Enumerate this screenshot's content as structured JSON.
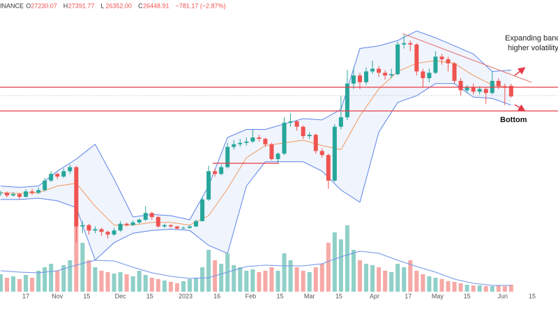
{
  "chart_data": {
    "type": "candlestick",
    "header": {
      "exchange": "INANCE",
      "fields": [
        {
          "label": "O",
          "value": "27230.07"
        },
        {
          "label": "H",
          "value": "27391.77"
        },
        {
          "label": "L",
          "value": "26352.00"
        },
        {
          "label": "C",
          "value": "26448.91"
        }
      ],
      "change": "−781.17 (−2.87%)"
    },
    "annotations": {
      "note_line1": "Expanding bands",
      "note_line2": "higher volatility",
      "bottom": "Bottom"
    },
    "xlim": [
      3.7,
      269.3
    ],
    "ylim": [
      11600,
      33600
    ],
    "volume_lim": [
      0,
      100
    ],
    "up_color": "#26a69a",
    "down_color": "#ef5350",
    "up_volume_color": "#8fd0c8",
    "down_volume_color": "#f6a9a6",
    "band_color": "#5b84e8",
    "band_mid_color": "#f09a5c",
    "volume_ma_color": "#6f93ea",
    "level_color": "#e53945",
    "levels": [
      27130,
      25370
    ],
    "xticks": [
      {
        "value": 16,
        "label": "17"
      },
      {
        "value": 31,
        "label": "Nov"
      },
      {
        "value": 45,
        "label": "15"
      },
      {
        "value": 61,
        "label": "Dec"
      },
      {
        "value": 75,
        "label": "15"
      },
      {
        "value": 92,
        "label": "2023"
      },
      {
        "value": 107,
        "label": "16"
      },
      {
        "value": 123,
        "label": "Feb"
      },
      {
        "value": 137,
        "label": "15"
      },
      {
        "value": 151,
        "label": "Mar"
      },
      {
        "value": 165,
        "label": "15"
      },
      {
        "value": 182,
        "label": "Apr"
      },
      {
        "value": 198,
        "label": "17"
      },
      {
        "value": 212,
        "label": "May"
      },
      {
        "value": 226,
        "label": "15"
      },
      {
        "value": 243,
        "label": "Jun"
      },
      {
        "value": 257,
        "label": "15"
      }
    ],
    "x": [
      4,
      7,
      10,
      13,
      16,
      19,
      22,
      25,
      28,
      31,
      34,
      37,
      40,
      43,
      46,
      49,
      52,
      55,
      58,
      61,
      64,
      67,
      70,
      73,
      76,
      79,
      82,
      85,
      88,
      91,
      94,
      97,
      100,
      103,
      106,
      109,
      112,
      115,
      118,
      121,
      124,
      127,
      130,
      133,
      136,
      139,
      142,
      145,
      148,
      151,
      154,
      157,
      160,
      163,
      166,
      169,
      172,
      175,
      178,
      181,
      184,
      187,
      190,
      193,
      196,
      199,
      202,
      205,
      208,
      211,
      214,
      217,
      220,
      223,
      226,
      229,
      232,
      235,
      238,
      241,
      244,
      247
    ],
    "candles": [
      [
        19250,
        19450,
        19050,
        19300
      ],
      [
        19300,
        19400,
        18950,
        19100
      ],
      [
        19100,
        19350,
        19000,
        19200
      ],
      [
        19200,
        19300,
        18800,
        19000
      ],
      [
        19000,
        19550,
        18950,
        19400
      ],
      [
        19400,
        19600,
        19150,
        19300
      ],
      [
        19300,
        19700,
        19200,
        19500
      ],
      [
        19500,
        20400,
        19400,
        20200
      ],
      [
        20200,
        20900,
        20100,
        20700
      ],
      [
        20700,
        20800,
        20300,
        20500
      ],
      [
        20500,
        21100,
        20400,
        20900
      ],
      [
        20900,
        21400,
        20700,
        21200
      ],
      [
        21200,
        21300,
        15600,
        16800
      ],
      [
        16800,
        17200,
        16300,
        16900
      ],
      [
        16900,
        17000,
        16200,
        16500
      ],
      [
        16500,
        16800,
        16300,
        16600
      ],
      [
        16600,
        16700,
        16100,
        16400
      ],
      [
        16400,
        16500,
        15900,
        16200
      ],
      [
        16200,
        16700,
        16100,
        16500
      ],
      [
        16500,
        17200,
        16400,
        17000
      ],
      [
        17000,
        17100,
        16800,
        16900
      ],
      [
        16900,
        17250,
        16850,
        17100
      ],
      [
        17100,
        17400,
        17000,
        17300
      ],
      [
        17300,
        18300,
        17200,
        17800
      ],
      [
        17800,
        17900,
        17300,
        17500
      ],
      [
        17500,
        17600,
        16700,
        16800
      ],
      [
        16800,
        17000,
        16700,
        16900
      ],
      [
        16900,
        16950,
        16700,
        16800
      ],
      [
        16800,
        16850,
        16550,
        16650
      ],
      [
        16650,
        16800,
        16600,
        16700
      ],
      [
        16700,
        16900,
        16650,
        16800
      ],
      [
        16800,
        17300,
        16750,
        17200
      ],
      [
        17200,
        19000,
        17150,
        18800
      ],
      [
        18800,
        21300,
        18700,
        20900
      ],
      [
        20900,
        21100,
        20500,
        20700
      ],
      [
        20700,
        21400,
        20600,
        21200
      ],
      [
        21200,
        23000,
        21100,
        22700
      ],
      [
        22700,
        23200,
        22500,
        22900
      ],
      [
        22900,
        23300,
        22700,
        23000
      ],
      [
        23000,
        23400,
        22800,
        23100
      ],
      [
        23100,
        24000,
        23000,
        23400
      ],
      [
        23400,
        23600,
        23100,
        23300
      ],
      [
        23300,
        23400,
        22700,
        22900
      ],
      [
        22900,
        23000,
        21700,
        21800
      ],
      [
        21800,
        22300,
        21500,
        22200
      ],
      [
        22200,
        24900,
        22100,
        24500
      ],
      [
        24500,
        25200,
        24200,
        24600
      ],
      [
        24600,
        24700,
        23900,
        24200
      ],
      [
        24200,
        24300,
        23300,
        23500
      ],
      [
        23500,
        23800,
        23300,
        23600
      ],
      [
        23600,
        23700,
        22200,
        22400
      ],
      [
        22400,
        22600,
        21900,
        22100
      ],
      [
        22100,
        22200,
        19600,
        20200
      ],
      [
        20200,
        24400,
        20100,
        24200
      ],
      [
        24200,
        26500,
        24000,
        24900
      ],
      [
        24900,
        28400,
        24700,
        27400
      ],
      [
        27400,
        28600,
        27000,
        28000
      ],
      [
        28000,
        28200,
        27000,
        27500
      ],
      [
        27500,
        28600,
        27300,
        28300
      ],
      [
        28300,
        29100,
        28100,
        28500
      ],
      [
        28500,
        28700,
        27900,
        28200
      ],
      [
        28200,
        28400,
        27700,
        28000
      ],
      [
        28000,
        28500,
        27800,
        28100
      ],
      [
        28100,
        30500,
        28000,
        30300
      ],
      [
        30300,
        31000,
        30000,
        30400
      ],
      [
        30400,
        30600,
        29800,
        30300
      ],
      [
        30300,
        30400,
        28000,
        28300
      ],
      [
        28300,
        28500,
        27100,
        27800
      ],
      [
        27800,
        28500,
        27500,
        28200
      ],
      [
        28200,
        29800,
        28100,
        29400
      ],
      [
        29400,
        29600,
        28800,
        29200
      ],
      [
        29200,
        29400,
        28300,
        28900
      ],
      [
        28900,
        29000,
        27400,
        27600
      ],
      [
        27600,
        27800,
        26500,
        26900
      ],
      [
        26900,
        27300,
        26700,
        27100
      ],
      [
        27100,
        27400,
        26600,
        26800
      ],
      [
        26800,
        27200,
        26600,
        27000
      ],
      [
        27000,
        27100,
        25900,
        26700
      ],
      [
        26700,
        28300,
        26600,
        27600
      ],
      [
        27600,
        27800,
        27000,
        27200
      ],
      [
        27200,
        27400,
        25800,
        27100
      ],
      [
        27230.07,
        27391.77,
        26352.0,
        26448.91
      ]
    ],
    "volume": [
      25,
      20,
      22,
      18,
      24,
      20,
      30,
      35,
      40,
      30,
      38,
      45,
      95,
      70,
      45,
      35,
      30,
      28,
      26,
      28,
      25,
      22,
      30,
      24,
      20,
      18,
      16,
      14,
      12,
      15,
      18,
      20,
      35,
      60,
      45,
      40,
      55,
      38,
      35,
      30,
      32,
      28,
      30,
      35,
      30,
      55,
      45,
      35,
      30,
      28,
      35,
      40,
      70,
      85,
      75,
      95,
      60,
      45,
      40,
      38,
      35,
      30,
      28,
      40,
      35,
      45,
      30,
      25,
      22,
      20,
      18,
      15,
      14,
      12,
      10,
      9,
      9,
      8,
      8,
      9,
      8,
      10
    ],
    "band_x": [
      4,
      13,
      22,
      31,
      40,
      49,
      58,
      67,
      76,
      85,
      94,
      103,
      112,
      121,
      130,
      139,
      148,
      157,
      166,
      175,
      184,
      193,
      202,
      211,
      220,
      229,
      238,
      247
    ],
    "band_upper": [
      19800,
      19700,
      19800,
      20900,
      21800,
      22900,
      20300,
      17500,
      17700,
      17600,
      17300,
      19800,
      23400,
      24000,
      24000,
      24400,
      24800,
      24700,
      25500,
      30000,
      30200,
      30600,
      31300,
      30800,
      30200,
      29600,
      28300,
      28400
    ],
    "band_mid": [
      19300,
      19250,
      19300,
      19800,
      20000,
      18300,
      16900,
      16900,
      17100,
      17100,
      16900,
      17600,
      19600,
      21900,
      22800,
      23000,
      23200,
      22800,
      22500,
      25000,
      27000,
      28300,
      28900,
      29100,
      28900,
      28000,
      27300,
      27100
    ],
    "band_lower": [
      18800,
      18800,
      18900,
      18700,
      18200,
      14300,
      15600,
      16300,
      16500,
      16600,
      16500,
      15400,
      14800,
      19800,
      21600,
      21600,
      21600,
      20900,
      19500,
      18600,
      23800,
      26000,
      26500,
      27400,
      27400,
      26400,
      26300,
      25800
    ],
    "volume_ma": [
      30,
      28,
      27,
      30,
      38,
      45,
      44,
      35,
      27,
      22,
      19,
      20,
      28,
      36,
      38,
      37,
      37,
      40,
      50,
      58,
      55,
      45,
      36,
      28,
      18,
      12,
      9,
      9
    ]
  }
}
